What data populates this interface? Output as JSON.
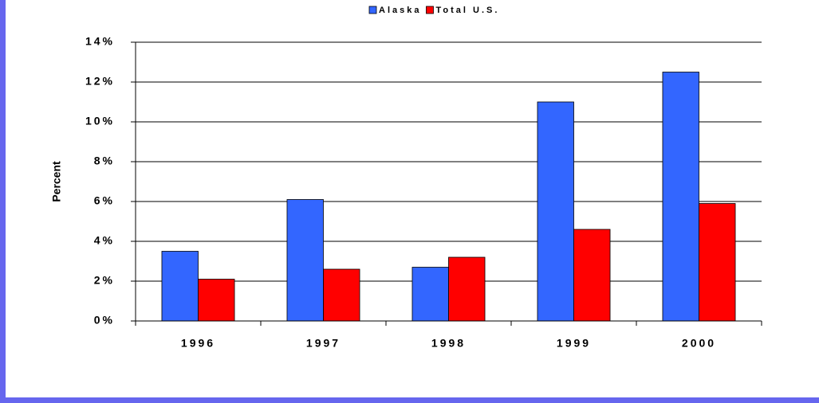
{
  "chart_data": {
    "type": "bar",
    "categories": [
      "1996",
      "1997",
      "1998",
      "1999",
      "2000"
    ],
    "series": [
      {
        "name": "Alaska",
        "color": "#3366ff",
        "values": [
          3.5,
          6.1,
          2.7,
          11.0,
          12.5
        ]
      },
      {
        "name": "Total U.S.",
        "color": "#ff0000",
        "values": [
          2.1,
          2.6,
          3.2,
          4.6,
          5.9
        ]
      }
    ],
    "y_label": "Percent",
    "ylim": [
      0,
      14
    ],
    "yticks": [
      {
        "value": 0,
        "label": "0%"
      },
      {
        "value": 2,
        "label": "2%"
      },
      {
        "value": 4,
        "label": "4%"
      },
      {
        "value": 6,
        "label": "6%"
      },
      {
        "value": 8,
        "label": "8%"
      },
      {
        "value": 10,
        "label": "10%"
      },
      {
        "value": 12,
        "label": "12%"
      },
      {
        "value": 14,
        "label": "14%"
      }
    ],
    "grid": true,
    "legend": "top"
  }
}
